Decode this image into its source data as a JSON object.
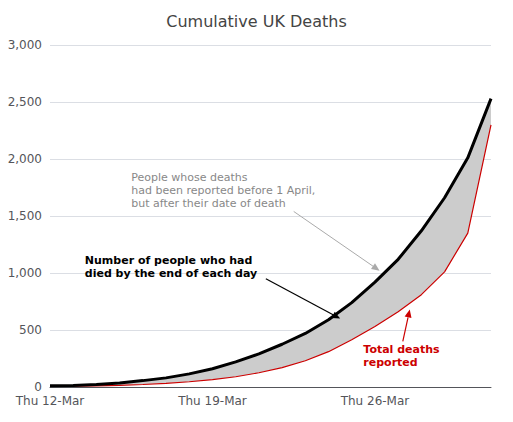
{
  "chart_data": {
    "type": "line",
    "title": "Cumulative UK Deaths",
    "categories": [
      "Thu 12-Mar",
      null,
      null,
      null,
      null,
      null,
      null,
      "Thu 19-Mar",
      null,
      null,
      null,
      null,
      null,
      null,
      "Thu 26-Mar",
      null,
      null,
      null,
      null,
      null
    ],
    "series": [
      {
        "color": "#000000",
        "values": [
          10,
          14,
          21,
          35,
          56,
          80,
          115,
          160,
          220,
          290,
          375,
          470,
          590,
          740,
          920,
          1120,
          1370,
          1660,
          2010,
          2530
        ]
      },
      {
        "color": "#cc0000",
        "values": [
          5,
          7,
          10,
          15,
          22,
          32,
          46,
          65,
          90,
          125,
          170,
          230,
          310,
          415,
          530,
          660,
          810,
          1010,
          1350,
          2300
        ]
      }
    ],
    "ylim": [
      0,
      3000
    ],
    "yticks": [
      0,
      500,
      {
        "value": 1000,
        "label": "1,000"
      },
      {
        "value": 1500,
        "label": "1,500"
      },
      {
        "value": 2000,
        "label": "2,000"
      },
      {
        "value": 2500,
        "label": "2,500"
      },
      {
        "value": 3000,
        "label": "3,000"
      }
    ],
    "grid": true,
    "annotations": [
      {
        "text": "Number of people who had\ndied by the end of each day",
        "color": "#000000"
      },
      {
        "text": "Total deaths\nreported",
        "color": "#cc0000"
      },
      {
        "text": "People whose deaths\nhad been reported before 1 April,\nbut after their date of death",
        "color": "#888888"
      }
    ]
  }
}
